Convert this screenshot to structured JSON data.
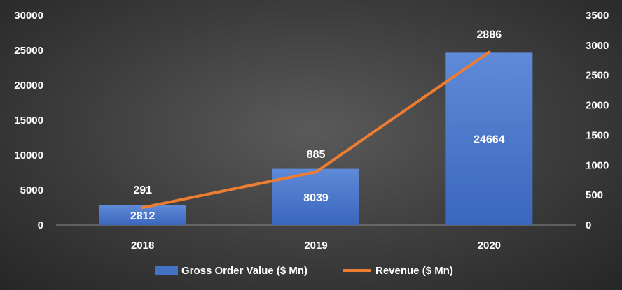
{
  "chart_data": {
    "type": "bar",
    "categories": [
      "2018",
      "2019",
      "2020"
    ],
    "series": [
      {
        "name": "Gross Order Value ($ Mn)",
        "type": "bar",
        "axis": "left",
        "values": [
          2812,
          8039,
          24664
        ],
        "color": "#4472c4"
      },
      {
        "name": "Revenue ($ Mn)",
        "type": "line",
        "axis": "right",
        "values": [
          291,
          885,
          2886
        ],
        "color": "#ed7d31"
      }
    ],
    "y_left": {
      "min": 0,
      "max": 30000,
      "ticks": [
        0,
        5000,
        10000,
        15000,
        20000,
        25000,
        30000
      ]
    },
    "y_right": {
      "min": 0,
      "max": 3500,
      "ticks": [
        0,
        500,
        1000,
        1500,
        2000,
        2500,
        3000,
        3500
      ]
    },
    "grid": false,
    "legend": "bottom",
    "background": "#3c3c3c",
    "text_color": "#ffffff"
  }
}
